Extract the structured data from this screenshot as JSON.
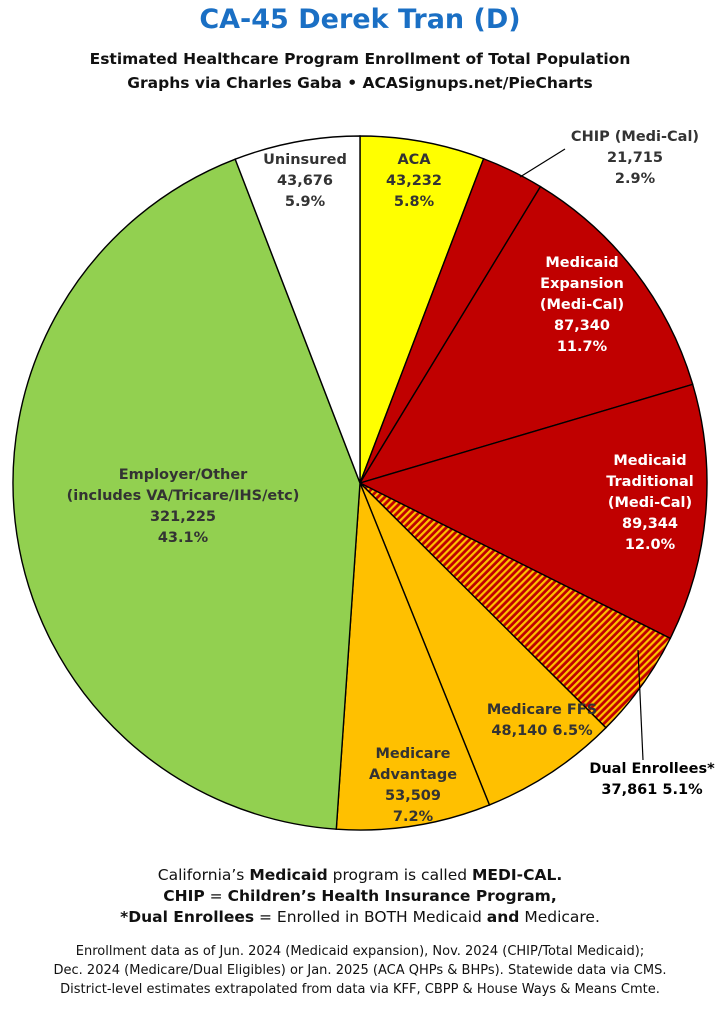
{
  "header": {
    "title": "CA-45 Derek Tran (D)",
    "subtitle1": "Estimated Healthcare Program Enrollment of Total Population",
    "subtitle2": "Graphs via Charles Gaba  •  ACASignups.net/PieCharts"
  },
  "colors": {
    "aca": "#ffff00",
    "medicaid": "#c00000",
    "medicare": "#ffc000",
    "employer": "#92d050",
    "uninsured": "#ffffff",
    "outline": "#000000"
  },
  "chart_data": {
    "type": "pie",
    "start": "12 o'clock",
    "direction": "clockwise",
    "slices": [
      {
        "label_lines": [
          "ACA"
        ],
        "value": 43232,
        "value_text": "43,232",
        "percent": "5.8%",
        "color": "#ffff00",
        "text_color": "#333333"
      },
      {
        "label_lines": [
          "CHIP (Medi-Cal)"
        ],
        "value": 21715,
        "value_text": "21,715",
        "percent": "2.9%",
        "color": "#c00000",
        "text_color": "#333333"
      },
      {
        "label_lines": [
          "Medicaid",
          "Expansion",
          "(Medi-Cal)"
        ],
        "value": 87340,
        "value_text": "87,340",
        "percent": "11.7%",
        "color": "#c00000",
        "text_color": "#ffffff"
      },
      {
        "label_lines": [
          "Medicaid",
          "Traditional",
          "(Medi-Cal)"
        ],
        "value": 89344,
        "value_text": "89,344",
        "percent": "12.0%",
        "color": "#c00000",
        "text_color": "#ffffff"
      },
      {
        "label_lines": [
          "Dual Enrollees*"
        ],
        "value": 37861,
        "value_text": "37,861",
        "percent": "5.1%",
        "color": "#c00000",
        "pattern": "stripes-orange",
        "text_color": "#000000"
      },
      {
        "label_lines": [
          "Medicare FFS"
        ],
        "value": 48140,
        "value_text": "48,140",
        "percent": "6.5%",
        "color": "#ffc000",
        "text_color": "#333333"
      },
      {
        "label_lines": [
          "Medicare",
          "Advantage"
        ],
        "value": 53509,
        "value_text": "53,509",
        "percent": "7.2%",
        "color": "#ffc000",
        "text_color": "#333333"
      },
      {
        "label_lines": [
          "Employer/Other",
          "(includes VA/Tricare/IHS/etc)"
        ],
        "value": 321225,
        "value_text": "321,225",
        "percent": "43.1%",
        "color": "#92d050",
        "text_color": "#333333"
      },
      {
        "label_lines": [
          "Uninsured"
        ],
        "value": 43676,
        "value_text": "43,676",
        "percent": "5.9%",
        "color": "#ffffff",
        "text_color": "#333333"
      }
    ]
  },
  "notes": {
    "line1_a": "California’s ",
    "line1_b": "Medicaid",
    "line1_c": " program is called ",
    "line1_d": "MEDI-CAL.",
    "line2_a": "CHIP",
    "line2_b": " = ",
    "line2_c": "Children’s Health Insurance Program,",
    "line3_a": "*Dual Enrollees",
    "line3_b": " = Enrolled in BOTH Medicaid ",
    "line3_c": "and",
    "line3_d": " Medicare."
  },
  "footer": {
    "line1": "Enrollment data as of Jun. 2024 (Medicaid expansion), Nov. 2024 (CHIP/Total Medicaid);",
    "line2": "Dec. 2024 (Medicare/Dual Eligibles) or Jan. 2025 (ACA QHPs & BHPs). Statewide data via CMS.",
    "line3": "District-level estimates extrapolated from data via KFF, CBPP & House Ways & Means Cmte."
  }
}
